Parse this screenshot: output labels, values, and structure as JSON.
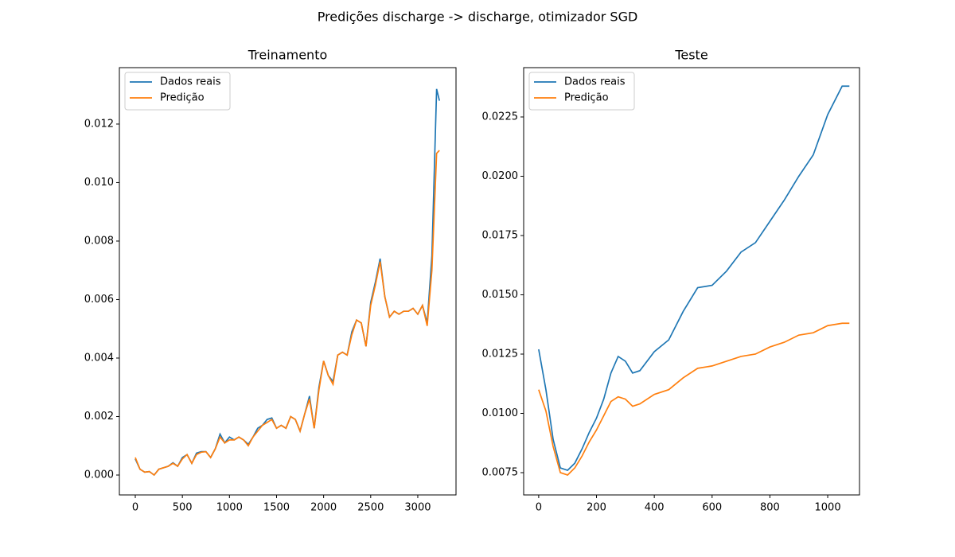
{
  "title": "Predições discharge -> discharge, otimizador SGD",
  "chart_data": [
    {
      "type": "line",
      "title": "Treinamento",
      "legend": "upper left",
      "x": [
        0,
        50,
        100,
        150,
        200,
        250,
        300,
        350,
        400,
        450,
        500,
        550,
        600,
        650,
        700,
        750,
        800,
        850,
        900,
        950,
        1000,
        1050,
        1100,
        1150,
        1200,
        1250,
        1300,
        1350,
        1400,
        1450,
        1500,
        1550,
        1600,
        1650,
        1700,
        1750,
        1800,
        1850,
        1900,
        1950,
        2000,
        2050,
        2100,
        2150,
        2200,
        2250,
        2300,
        2350,
        2400,
        2450,
        2500,
        2550,
        2600,
        2650,
        2700,
        2750,
        2800,
        2850,
        2900,
        2950,
        3000,
        3050,
        3100,
        3150,
        3200,
        3230
      ],
      "series": [
        {
          "name": "Dados reais",
          "color": "#1f77b4",
          "values": [
            0.00055,
            0.0002,
            0.0001,
            0.00012,
            0.0,
            0.0002,
            0.00025,
            0.0003,
            0.00042,
            0.0003,
            0.0006,
            0.0007,
            0.0004,
            0.00075,
            0.0008,
            0.0008,
            0.0006,
            0.0009,
            0.0014,
            0.0011,
            0.0013,
            0.0012,
            0.0013,
            0.0012,
            0.00105,
            0.0013,
            0.0016,
            0.0017,
            0.0019,
            0.00195,
            0.0016,
            0.0017,
            0.0016,
            0.002,
            0.0019,
            0.0015,
            0.0021,
            0.0027,
            0.0016,
            0.003,
            0.0039,
            0.0034,
            0.0032,
            0.0041,
            0.0042,
            0.0041,
            0.0049,
            0.0053,
            0.0052,
            0.0044,
            0.0059,
            0.0066,
            0.0074,
            0.0061,
            0.0054,
            0.0056,
            0.0055,
            0.0056,
            0.0056,
            0.0057,
            0.0055,
            0.0058,
            0.0052,
            0.0075,
            0.0132,
            0.0128
          ]
        },
        {
          "name": "Predição",
          "color": "#ff7f0e",
          "values": [
            0.0006,
            0.0002,
            0.0001,
            0.00012,
            0.0,
            0.0002,
            0.00025,
            0.0003,
            0.0004,
            0.0003,
            0.00055,
            0.0007,
            0.0004,
            0.0007,
            0.00078,
            0.0008,
            0.0006,
            0.0009,
            0.0013,
            0.0011,
            0.0012,
            0.0012,
            0.0013,
            0.0012,
            0.001,
            0.0013,
            0.0015,
            0.0017,
            0.0018,
            0.0019,
            0.0016,
            0.0017,
            0.0016,
            0.002,
            0.0019,
            0.0015,
            0.0021,
            0.0026,
            0.0016,
            0.0029,
            0.0039,
            0.0034,
            0.0031,
            0.0041,
            0.0042,
            0.0041,
            0.0048,
            0.0053,
            0.0052,
            0.0044,
            0.0058,
            0.0065,
            0.0073,
            0.0061,
            0.0054,
            0.0056,
            0.0055,
            0.0056,
            0.0056,
            0.0057,
            0.0055,
            0.0058,
            0.0051,
            0.007,
            0.011,
            0.0111
          ]
        }
      ],
      "xlim": [
        -169,
        3406
      ],
      "xticks": [
        0,
        500,
        1000,
        1500,
        2000,
        2500,
        3000
      ],
      "ylim": [
        -0.00068,
        0.01393
      ],
      "yticks": [
        {
          "value": 0,
          "label": "0.000"
        },
        0.002,
        0.004,
        0.006,
        0.008,
        {
          "value": 0.01,
          "label": "0.010"
        },
        0.012
      ]
    },
    {
      "type": "line",
      "title": "Teste",
      "legend": "upper left",
      "x": [
        0,
        25,
        50,
        75,
        100,
        125,
        150,
        175,
        200,
        225,
        250,
        275,
        300,
        325,
        350,
        400,
        450,
        500,
        550,
        600,
        650,
        700,
        750,
        800,
        850,
        900,
        950,
        1000,
        1050,
        1075
      ],
      "series": [
        {
          "name": "Dados reais",
          "color": "#1f77b4",
          "values": [
            0.0127,
            0.011,
            0.0089,
            0.0077,
            0.0076,
            0.0079,
            0.0085,
            0.0092,
            0.0098,
            0.0106,
            0.0117,
            0.0124,
            0.0122,
            0.0117,
            0.0118,
            0.0126,
            0.0131,
            0.0143,
            0.0153,
            0.0154,
            0.016,
            0.0168,
            0.0172,
            0.0181,
            0.019,
            0.02,
            0.0209,
            0.0226,
            0.0238,
            0.0238
          ]
        },
        {
          "name": "Predição",
          "color": "#ff7f0e",
          "values": [
            0.011,
            0.0101,
            0.0086,
            0.0075,
            0.0074,
            0.0077,
            0.0082,
            0.0088,
            0.0093,
            0.0099,
            0.0105,
            0.0107,
            0.0106,
            0.0103,
            0.0104,
            0.0108,
            0.011,
            0.0115,
            0.0119,
            0.012,
            0.0122,
            0.0124,
            0.0125,
            0.0128,
            0.013,
            0.0133,
            0.0134,
            0.0137,
            0.0138,
            0.0138
          ]
        }
      ],
      "xlim": [
        -52,
        1110
      ],
      "xticks": [
        0,
        200,
        400,
        600,
        800,
        1000
      ],
      "ylim": [
        0.00656,
        0.02458
      ],
      "yticks": [
        0.0075,
        {
          "value": 0.01,
          "label": "0.0100"
        },
        0.0125,
        {
          "value": 0.015,
          "label": "0.0150"
        },
        0.0175,
        {
          "value": 0.02,
          "label": "0.0200"
        },
        0.0225
      ]
    }
  ]
}
